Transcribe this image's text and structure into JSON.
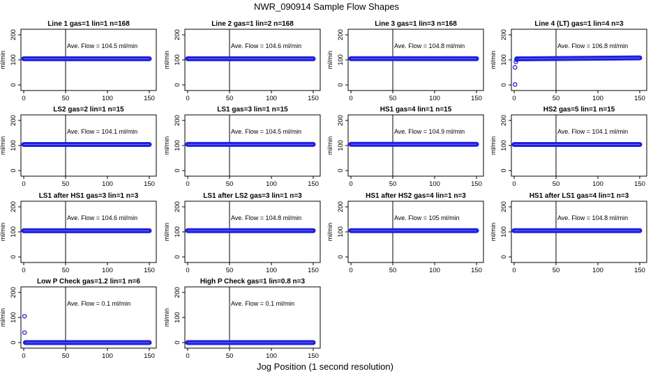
{
  "figure": {
    "title": "NWR_090914  Sample Flow Shapes",
    "xlabel": "Jog Position (1 second resolution)",
    "ylabel": "ml/min",
    "colors": {
      "points": "#1f1fe0",
      "axis": "#000000",
      "background": "#ffffff"
    }
  },
  "chart_data": [
    {
      "type": "scatter",
      "title": "Line 1 gas=1 lin=1 n=168",
      "annotation": "Ave. Flow =  104.5  ml/min",
      "mean": 104.5,
      "xlim": [
        0,
        150
      ],
      "ylim": [
        0,
        200
      ],
      "vline": 50,
      "xticks": [
        0,
        50,
        100,
        150
      ],
      "yticks": [
        0,
        100,
        200
      ],
      "x_range": [
        0,
        150
      ],
      "y_series": [
        {
          "x": 0,
          "y": 104.5
        },
        {
          "x": 150,
          "y": 104.5
        }
      ]
    },
    {
      "type": "scatter",
      "title": "Line 2 gas=1 lin=2 n=168",
      "annotation": "Ave. Flow =  104.6  ml/min",
      "mean": 104.6,
      "xlim": [
        0,
        150
      ],
      "ylim": [
        0,
        200
      ],
      "vline": 50,
      "xticks": [
        0,
        50,
        100,
        150
      ],
      "yticks": [
        0,
        100,
        200
      ],
      "x_range": [
        0,
        150
      ],
      "y_series": [
        {
          "x": 0,
          "y": 104.6
        },
        {
          "x": 150,
          "y": 104.6
        }
      ]
    },
    {
      "type": "scatter",
      "title": "Line 3 gas=1 lin=3 n=168",
      "annotation": "Ave. Flow =  104.8  ml/min",
      "mean": 104.8,
      "xlim": [
        0,
        150
      ],
      "ylim": [
        0,
        200
      ],
      "vline": 50,
      "xticks": [
        0,
        50,
        100,
        150
      ],
      "yticks": [
        0,
        100,
        200
      ],
      "x_range": [
        0,
        150
      ],
      "y_series": [
        {
          "x": 0,
          "y": 104.8
        },
        {
          "x": 150,
          "y": 104.8
        }
      ]
    },
    {
      "type": "scatter",
      "title": "Line 4 (LT) gas=1 lin=4 n=3",
      "annotation": "Ave. Flow =  106.8  ml/min",
      "mean": 106.8,
      "xlim": [
        0,
        150
      ],
      "ylim": [
        0,
        200
      ],
      "vline": 50,
      "xticks": [
        0,
        50,
        100,
        150
      ],
      "yticks": [
        0,
        100,
        200
      ],
      "x_range": [
        3,
        150
      ],
      "outliers": [
        {
          "x": 1,
          "y": 2
        },
        {
          "x": 1,
          "y": 70
        },
        {
          "x": 2,
          "y": 92
        },
        {
          "x": 3,
          "y": 100
        }
      ],
      "y_series": [
        {
          "x": 3,
          "y": 104
        },
        {
          "x": 150,
          "y": 108
        }
      ]
    },
    {
      "type": "scatter",
      "title": "LS2 gas=2 lin=1 n=15",
      "annotation": "Ave. Flow =  104.1  ml/min",
      "mean": 104.1,
      "xlim": [
        0,
        150
      ],
      "ylim": [
        0,
        200
      ],
      "vline": 50,
      "xticks": [
        0,
        50,
        100,
        150
      ],
      "yticks": [
        0,
        100,
        200
      ],
      "x_range": [
        0,
        150
      ],
      "y_series": [
        {
          "x": 0,
          "y": 104.1
        },
        {
          "x": 150,
          "y": 104.1
        }
      ]
    },
    {
      "type": "scatter",
      "title": "LS1 gas=3 lin=1 n=15",
      "annotation": "Ave. Flow =  104.5  ml/min",
      "mean": 104.5,
      "xlim": [
        0,
        150
      ],
      "ylim": [
        0,
        200
      ],
      "vline": 50,
      "xticks": [
        0,
        50,
        100,
        150
      ],
      "yticks": [
        0,
        100,
        200
      ],
      "x_range": [
        0,
        150
      ],
      "y_series": [
        {
          "x": 0,
          "y": 104.5
        },
        {
          "x": 150,
          "y": 104.5
        }
      ]
    },
    {
      "type": "scatter",
      "title": "HS1 gas=4 lin=1 n=15",
      "annotation": "Ave. Flow =  104.9  ml/min",
      "mean": 104.9,
      "xlim": [
        0,
        150
      ],
      "ylim": [
        0,
        200
      ],
      "vline": 50,
      "xticks": [
        0,
        50,
        100,
        150
      ],
      "yticks": [
        0,
        100,
        200
      ],
      "x_range": [
        0,
        150
      ],
      "y_series": [
        {
          "x": 0,
          "y": 104.9
        },
        {
          "x": 150,
          "y": 104.9
        }
      ]
    },
    {
      "type": "scatter",
      "title": "HS2 gas=5 lin=1 n=15",
      "annotation": "Ave. Flow =  104.1  ml/min",
      "mean": 104.1,
      "xlim": [
        0,
        150
      ],
      "ylim": [
        0,
        200
      ],
      "vline": 50,
      "xticks": [
        0,
        50,
        100,
        150
      ],
      "yticks": [
        0,
        100,
        200
      ],
      "x_range": [
        0,
        150
      ],
      "y_series": [
        {
          "x": 0,
          "y": 104.1
        },
        {
          "x": 150,
          "y": 104.1
        }
      ]
    },
    {
      "type": "scatter",
      "title": "LS1 after HS1 gas=3 lin=1 n=3",
      "annotation": "Ave. Flow =  104.6  ml/min",
      "mean": 104.6,
      "xlim": [
        0,
        150
      ],
      "ylim": [
        0,
        200
      ],
      "vline": 50,
      "xticks": [
        0,
        50,
        100,
        150
      ],
      "yticks": [
        0,
        100,
        200
      ],
      "x_range": [
        0,
        150
      ],
      "y_series": [
        {
          "x": 0,
          "y": 104.6
        },
        {
          "x": 150,
          "y": 104.6
        }
      ]
    },
    {
      "type": "scatter",
      "title": "LS1 after LS2 gas=3 lin=1 n=3",
      "annotation": "Ave. Flow =  104.8  ml/min",
      "mean": 104.8,
      "xlim": [
        0,
        150
      ],
      "ylim": [
        0,
        200
      ],
      "vline": 50,
      "xticks": [
        0,
        50,
        100,
        150
      ],
      "yticks": [
        0,
        100,
        200
      ],
      "x_range": [
        0,
        150
      ],
      "y_series": [
        {
          "x": 0,
          "y": 104.8
        },
        {
          "x": 150,
          "y": 104.8
        }
      ]
    },
    {
      "type": "scatter",
      "title": "HS1 after HS2 gas=4 lin=1 n=3",
      "annotation": "Ave. Flow =  105  ml/min",
      "mean": 105,
      "xlim": [
        0,
        150
      ],
      "ylim": [
        0,
        200
      ],
      "vline": 50,
      "xticks": [
        0,
        50,
        100,
        150
      ],
      "yticks": [
        0,
        100,
        200
      ],
      "x_range": [
        0,
        150
      ],
      "y_series": [
        {
          "x": 0,
          "y": 105
        },
        {
          "x": 150,
          "y": 105
        }
      ]
    },
    {
      "type": "scatter",
      "title": "HS1 after LS1 gas=4 lin=1 n=3",
      "annotation": "Ave. Flow =  104.8  ml/min",
      "mean": 104.8,
      "xlim": [
        0,
        150
      ],
      "ylim": [
        0,
        200
      ],
      "vline": 50,
      "xticks": [
        0,
        50,
        100,
        150
      ],
      "yticks": [
        0,
        100,
        200
      ],
      "x_range": [
        0,
        150
      ],
      "y_series": [
        {
          "x": 0,
          "y": 104.8
        },
        {
          "x": 150,
          "y": 104.8
        }
      ]
    },
    {
      "type": "scatter",
      "title": "Low P Check gas=1.2 lin=1 n=6",
      "annotation": "Ave. Flow =  0.1  ml/min",
      "mean": 0.1,
      "xlim": [
        0,
        150
      ],
      "ylim": [
        0,
        200
      ],
      "vline": 50,
      "xticks": [
        0,
        50,
        100,
        150
      ],
      "yticks": [
        0,
        100,
        200
      ],
      "x_range": [
        2,
        150
      ],
      "outliers": [
        {
          "x": 1,
          "y": 105
        },
        {
          "x": 1,
          "y": 40
        }
      ],
      "y_series": [
        {
          "x": 2,
          "y": 0.1
        },
        {
          "x": 150,
          "y": 0.1
        }
      ]
    },
    {
      "type": "scatter",
      "title": "High P Check gas=1 lin=0.8 n=3",
      "annotation": "Ave. Flow =  0.1  ml/min",
      "mean": 0.1,
      "xlim": [
        0,
        150
      ],
      "ylim": [
        0,
        200
      ],
      "vline": 50,
      "xticks": [
        0,
        50,
        100,
        150
      ],
      "yticks": [
        0,
        100,
        200
      ],
      "x_range": [
        0,
        150
      ],
      "y_series": [
        {
          "x": 0,
          "y": 0.1
        },
        {
          "x": 150,
          "y": 0.1
        }
      ]
    }
  ]
}
